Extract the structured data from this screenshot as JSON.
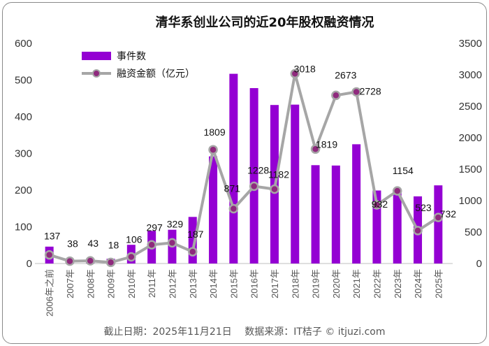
{
  "chart_data": {
    "type": "bar+line",
    "title": "清华系创业公司的近20年股权融资情况",
    "categories": [
      "2006年之前",
      "2007年",
      "2008年",
      "2009年",
      "2010年",
      "2011年",
      "2012年",
      "2013年",
      "2014年",
      "2015年",
      "2016年",
      "2017年",
      "2018年",
      "2019年",
      "2020年",
      "2021年",
      "2022年",
      "2023年",
      "2024年",
      "2025年"
    ],
    "series": [
      {
        "name": "事件数",
        "type": "bar",
        "axis": "left",
        "color": "#9400D3",
        "values": [
          46,
          12,
          13,
          13,
          51,
          89,
          92,
          127,
          292,
          517,
          478,
          432,
          433,
          268,
          267,
          325,
          199,
          200,
          183,
          213
        ]
      },
      {
        "name": "融资金额（亿元）",
        "type": "line",
        "axis": "right",
        "color": "#a6a6a6",
        "marker_color": "#8f2a7d",
        "values": [
          137,
          38,
          43,
          18,
          106,
          297,
          329,
          187,
          1809,
          871,
          1228,
          1182,
          3018,
          1819,
          2673,
          2728,
          932,
          1154,
          523,
          732
        ],
        "labels": [
          "137",
          "38",
          "43",
          "18",
          "106",
          "297",
          "329",
          "187",
          "1809",
          "871",
          "1228",
          "1182",
          "3018",
          "1819",
          "2673",
          "2728",
          "932",
          "1154",
          "523",
          "732"
        ]
      }
    ],
    "y_left": {
      "min": 0,
      "max": 600,
      "ticks": [
        "0",
        "100",
        "200",
        "300",
        "400",
        "500",
        "600"
      ]
    },
    "y_right": {
      "min": 0,
      "max": 3500,
      "ticks": [
        "0",
        "500",
        "1000",
        "1500",
        "2000",
        "2500",
        "3000",
        "3500"
      ]
    },
    "legend": {
      "position": "top-left",
      "items": [
        "事件数",
        "融资金额（亿元）"
      ]
    },
    "grid": false,
    "footer": "截止日期：2025年11月21日　 数据来源：IT桔子 © itjuzi.com"
  }
}
